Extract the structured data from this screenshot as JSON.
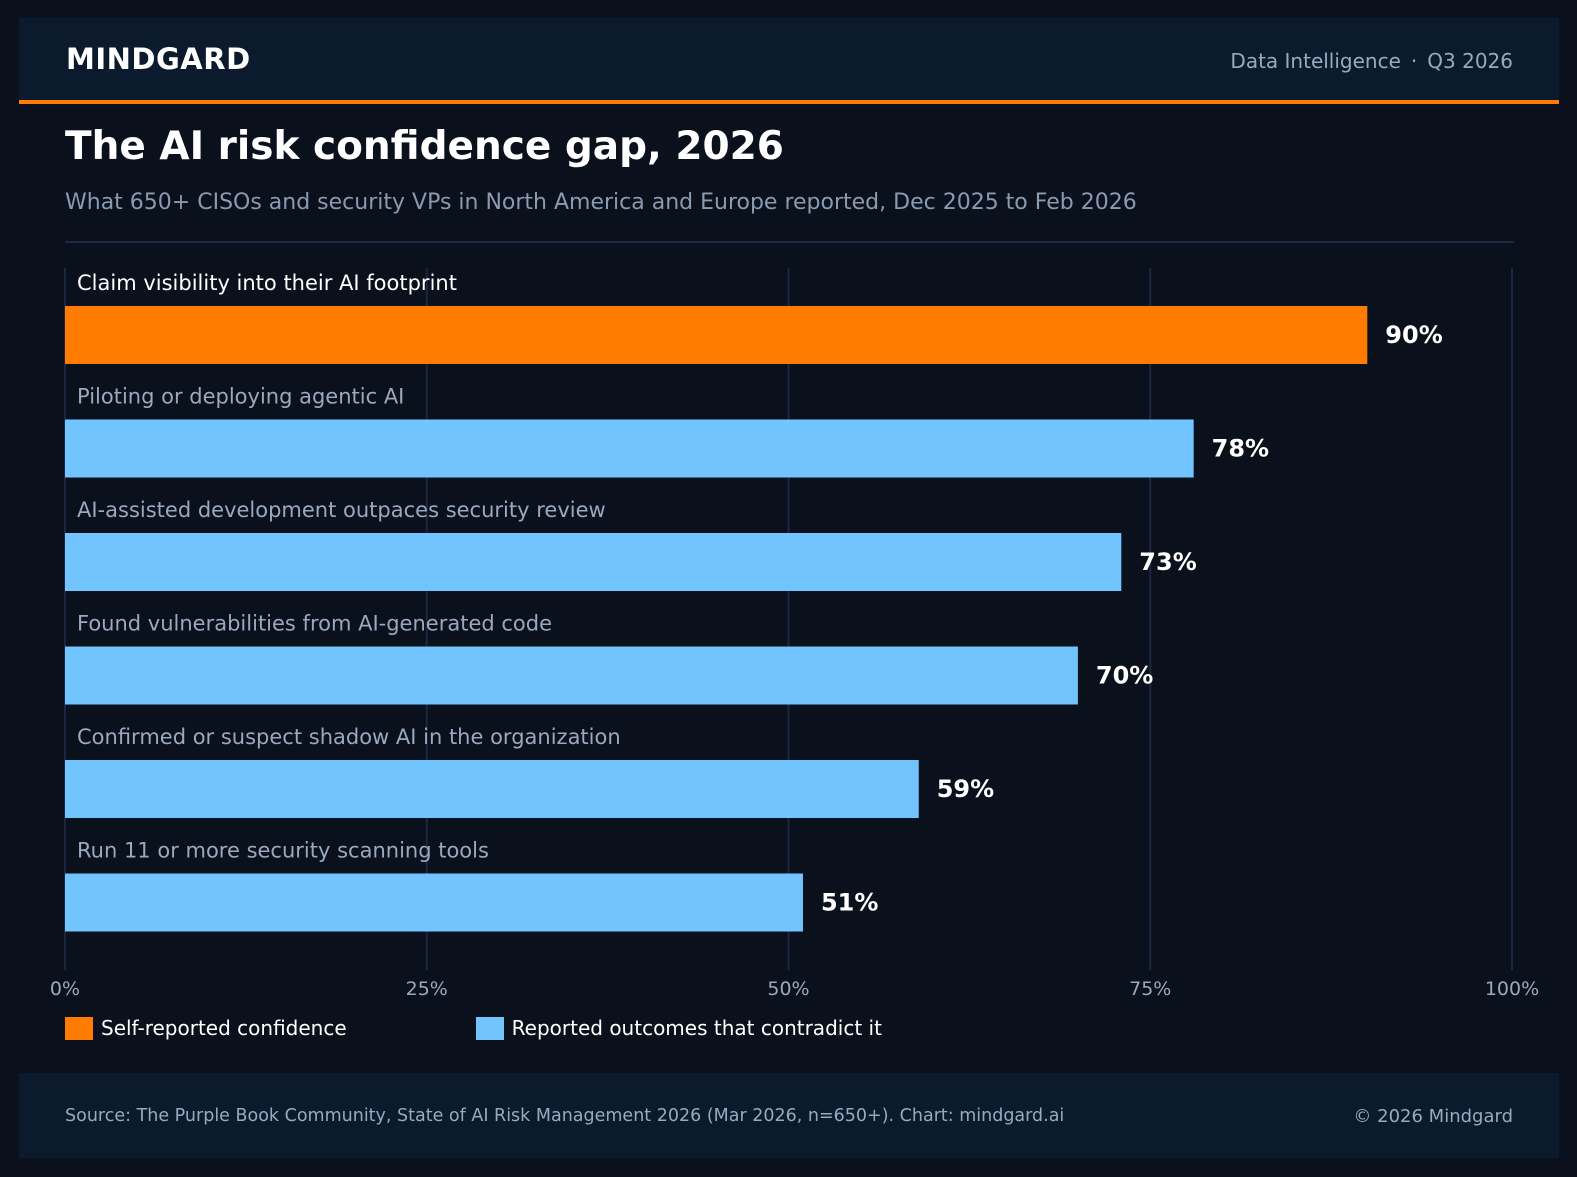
{
  "header": {
    "brand": "MINDGARD",
    "section": "Data Intelligence",
    "separator": "·",
    "period": "Q3 2026"
  },
  "title": "The AI risk confidence gap, 2026",
  "subtitle": "What 650+ CISOs and security VPs in North America and Europe reported, Dec 2025 to Feb 2026",
  "colors": {
    "background": "#0a101c",
    "panel": "#0c1a2d",
    "accent": "#ff7c00",
    "outcome": "#72c4fe",
    "muted_text": "#9aa9bd",
    "grid": "#1b2740"
  },
  "legend": [
    {
      "label": "Self-reported confidence",
      "color": "#ff7c00"
    },
    {
      "label": "Reported outcomes that contradict it",
      "color": "#72c4fe"
    }
  ],
  "chart_data": {
    "type": "bar",
    "orientation": "horizontal",
    "categories": [
      "Claim visibility into their AI footprint",
      "Piloting or deploying agentic AI",
      "AI-assisted development outpaces security review",
      "Found vulnerabilities from AI-generated code",
      "Confirmed or suspect shadow AI in the organization",
      "Run 11 or more security scanning tools"
    ],
    "values": [
      90,
      78,
      73,
      70,
      59,
      51
    ],
    "value_labels": [
      "90%",
      "78%",
      "73%",
      "70%",
      "59%",
      "51%"
    ],
    "bar_groups": [
      "Self-reported confidence",
      "Reported outcomes that contradict it",
      "Reported outcomes that contradict it",
      "Reported outcomes that contradict it",
      "Reported outcomes that contradict it",
      "Reported outcomes that contradict it"
    ],
    "xlim": [
      0,
      100
    ],
    "xticks": [
      0,
      25,
      50,
      75,
      100
    ],
    "xtick_labels": [
      "0%",
      "25%",
      "50%",
      "75%",
      "100%"
    ],
    "grid": true,
    "legend_position": "bottom-left"
  },
  "footer": {
    "source": "Source: The Purple Book Community, State of AI Risk Management 2026 (Mar 2026, n=650+). Chart: mindgard.ai",
    "copyright": "© 2026 Mindgard"
  }
}
